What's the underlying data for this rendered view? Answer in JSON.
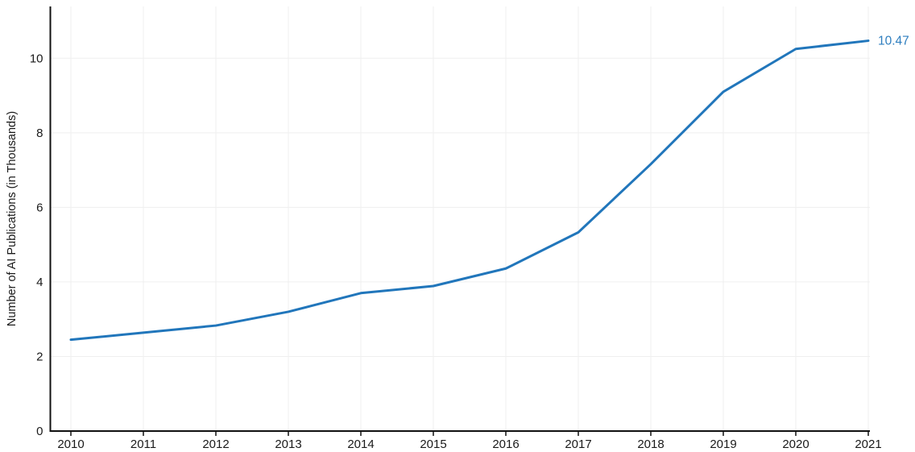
{
  "chart_data": {
    "type": "line",
    "title": "",
    "xlabel": "",
    "ylabel": "Number of AI Publications (in Thousands)",
    "x": [
      2010,
      2011,
      2012,
      2013,
      2014,
      2015,
      2016,
      2017,
      2018,
      2019,
      2020,
      2021
    ],
    "series": [
      {
        "name": "Number of AI Publications (in Thousands)",
        "values": [
          2.45,
          2.64,
          2.83,
          3.2,
          3.7,
          3.89,
          4.36,
          5.33,
          7.16,
          9.1,
          10.25,
          10.47
        ]
      }
    ],
    "yticks": [
      0,
      2,
      4,
      6,
      8,
      10
    ],
    "ylim": [
      0,
      11.4
    ],
    "grid": true,
    "legend": "none",
    "end_label": "10.47",
    "colors": {
      "line": "#2176bb",
      "end_label": "#2e7ebf",
      "axis": "#111111",
      "tick_text": "#1a1a1a",
      "grid": "#efefef",
      "background": "#ffffff"
    }
  }
}
